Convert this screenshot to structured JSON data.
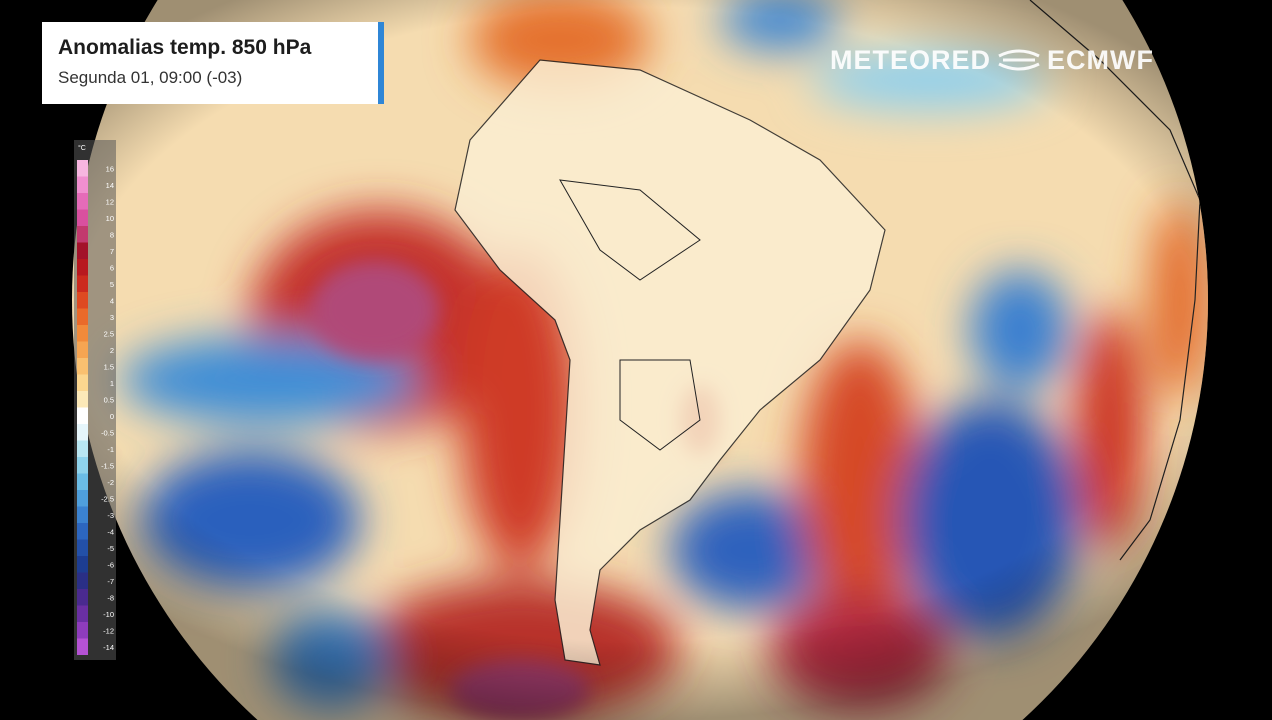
{
  "header": {
    "title": "Anomalias temp. 850 hPa",
    "subtitle": "Segunda 01, 09:00 (-03)"
  },
  "logo": {
    "left": "METEORED",
    "right": "ECMWF"
  },
  "legend": {
    "unit": "°C",
    "items": [
      {
        "label": "16",
        "color": "#f7b6e0"
      },
      {
        "label": "14",
        "color": "#f08fcf"
      },
      {
        "label": "12",
        "color": "#e56bb8"
      },
      {
        "label": "10",
        "color": "#d9509f"
      },
      {
        "label": "8",
        "color": "#c23a6e"
      },
      {
        "label": "7",
        "color": "#a3122a"
      },
      {
        "label": "6",
        "color": "#b8181f"
      },
      {
        "label": "5",
        "color": "#cc2a1e"
      },
      {
        "label": "4",
        "color": "#de4a22"
      },
      {
        "label": "3",
        "color": "#ea6a2a"
      },
      {
        "label": "2.5",
        "color": "#f28a3a"
      },
      {
        "label": "2",
        "color": "#f6a552"
      },
      {
        "label": "1.5",
        "color": "#f9c070"
      },
      {
        "label": "1",
        "color": "#fbd68f"
      },
      {
        "label": "0.5",
        "color": "#fce9b8"
      },
      {
        "label": "0",
        "color": "#ffffff"
      },
      {
        "label": "-0.5",
        "color": "#e6f6fb"
      },
      {
        "label": "-1",
        "color": "#b8e6f2"
      },
      {
        "label": "-1.5",
        "color": "#8fd3ec"
      },
      {
        "label": "-2",
        "color": "#6bbde6"
      },
      {
        "label": "-2.5",
        "color": "#4f9fdc"
      },
      {
        "label": "-3",
        "color": "#3b82d0"
      },
      {
        "label": "-4",
        "color": "#2c66bf"
      },
      {
        "label": "-5",
        "color": "#2350a8"
      },
      {
        "label": "-6",
        "color": "#1d3d92"
      },
      {
        "label": "-7",
        "color": "#2a2f86"
      },
      {
        "label": "-8",
        "color": "#4a2a8f"
      },
      {
        "label": "-10",
        "color": "#6a2fa3"
      },
      {
        "label": "-12",
        "color": "#8e3cbc"
      },
      {
        "label": "-14",
        "color": "#b552d4"
      }
    ]
  }
}
